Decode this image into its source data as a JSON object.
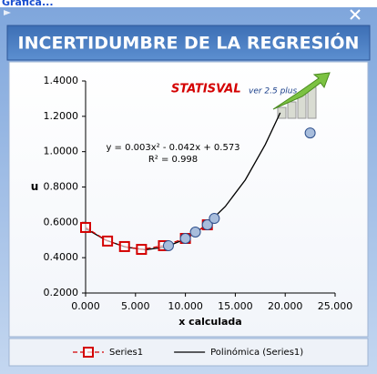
{
  "window_title": "Gráfica...",
  "chart_data": {
    "type": "scatter",
    "title": "INCERTIDUMBRE DE LA REGRESIÓN",
    "logo": {
      "name": "STATISVAL",
      "version": "ver 2.5 plus"
    },
    "x_label": "x calculada",
    "y_label": "u",
    "annotations": [
      "y = 0.003x² - 0.042x + 0.573",
      "R² = 0.998"
    ],
    "xlim": [
      0,
      25
    ],
    "ylim": [
      0.2,
      1.4
    ],
    "xticks": [
      {
        "value": 0,
        "label": "0.000"
      },
      {
        "value": 5,
        "label": "5.000"
      },
      {
        "value": 10,
        "label": "10.000"
      },
      {
        "value": 15,
        "label": "15.000"
      },
      {
        "value": 20,
        "label": "20.000"
      },
      {
        "value": 25,
        "label": "25.000"
      }
    ],
    "yticks": [
      {
        "value": 0.2,
        "label": "0.2000"
      },
      {
        "value": 0.4,
        "label": "0.4000"
      },
      {
        "value": 0.6,
        "label": "0.6000"
      },
      {
        "value": 0.8,
        "label": "0.8000"
      },
      {
        "value": 1.0,
        "label": "1.0000"
      },
      {
        "value": 1.2,
        "label": "1.2000"
      },
      {
        "value": 1.4,
        "label": "1.4000"
      }
    ],
    "series": [
      {
        "name": "Series1",
        "color": "#d40000",
        "line": "dashed",
        "marker": "square",
        "x": [
          0,
          2.2,
          3.9,
          5.6,
          7.8,
          10.0,
          12.2
        ],
        "values": [
          0.571,
          0.494,
          0.463,
          0.447,
          0.468,
          0.509,
          0.586
        ]
      },
      {
        "color": "#2e4f8c",
        "line": "none",
        "marker": "circle",
        "x": [
          8.3,
          10.0,
          11.0,
          12.2,
          12.9,
          22.5
        ],
        "values": [
          0.468,
          0.509,
          0.545,
          0.586,
          0.622,
          1.106
        ]
      },
      {
        "name": "Polinómica (Series1)",
        "color": "#000000",
        "line": "solid",
        "marker": "none",
        "x": [
          0,
          2,
          4,
          6,
          8,
          10,
          12,
          14,
          16,
          18,
          19.5
        ],
        "values": [
          0.565,
          0.5,
          0.46,
          0.445,
          0.46,
          0.505,
          0.58,
          0.69,
          0.84,
          1.04,
          1.22
        ]
      }
    ]
  }
}
